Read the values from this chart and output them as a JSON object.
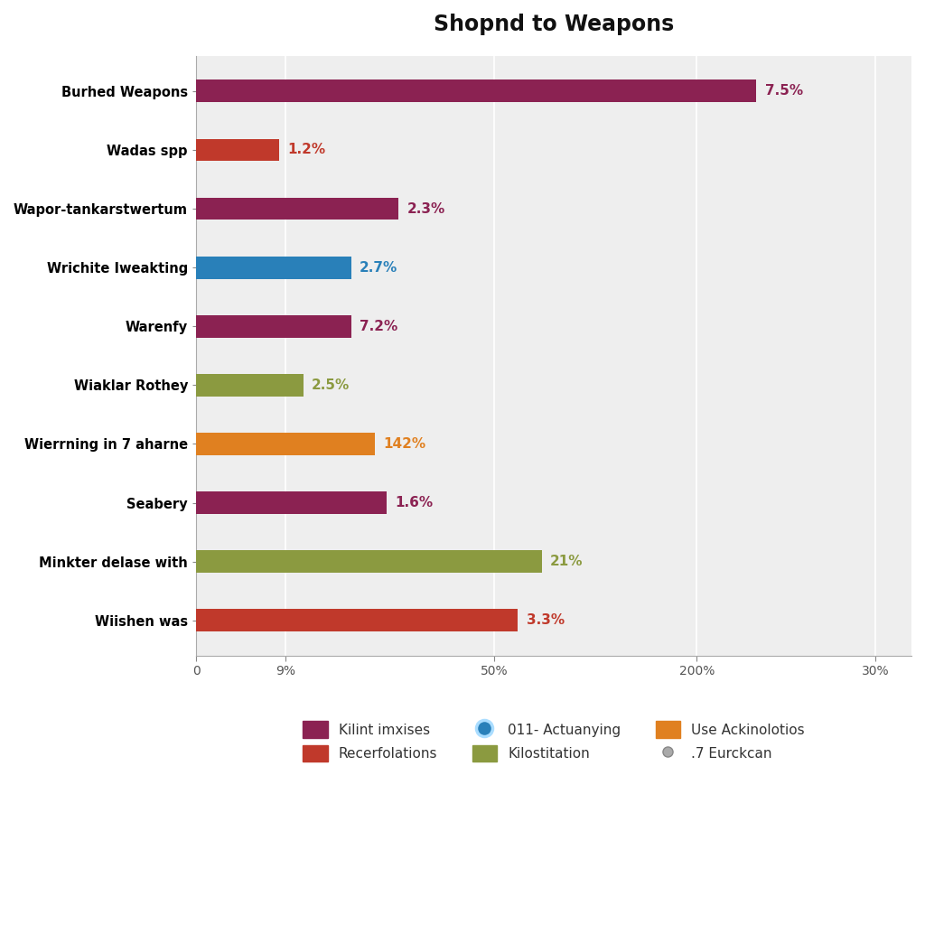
{
  "title": "Shopnd to Weapons",
  "categories": [
    "Wiishen was",
    "Minkter delase with",
    "Seabery",
    "Wierrning in 7 aharne",
    "Wiaklar Rothey",
    "Warenfy",
    "Wrichite Iweakting",
    "Wapor-tankarstwertum",
    "Wadas spp",
    "Burhed Weapons"
  ],
  "value_labels": [
    "3.3%",
    "21%",
    "1.6%",
    "142%",
    "2.5%",
    "7.2%",
    "2.7%",
    "2.3%",
    "1.2%",
    "7.5%"
  ],
  "colors": [
    "#c0392b",
    "#8b9a40",
    "#8b2252",
    "#e08020",
    "#8b9a40",
    "#8b2252",
    "#2980b9",
    "#8b2252",
    "#c0392b",
    "#8b2252"
  ],
  "label_colors": [
    "#c0392b",
    "#8b9a40",
    "#8b2252",
    "#e08020",
    "#8b9a40",
    "#8b2252",
    "#2980b9",
    "#8b2252",
    "#c0392b",
    "#8b2252"
  ],
  "display_values": [
    13.5,
    14.5,
    8.0,
    7.5,
    4.5,
    6.5,
    6.5,
    8.5,
    3.5,
    23.5
  ],
  "xlim": [
    0,
    30
  ],
  "xtick_labels": [
    "0",
    "9%",
    "50%",
    "200%",
    "30%"
  ],
  "xtick_positions": [
    0,
    3.75,
    12.5,
    21.0,
    28.5
  ],
  "plot_bg_color": "#eeeeee",
  "fig_bg_color": "#ffffff",
  "legend_items": [
    {
      "label": "Kilint imxises",
      "color": "#8b2252",
      "type": "patch"
    },
    {
      "label": "Recerfolations",
      "color": "#c0392b",
      "type": "patch"
    },
    {
      "label": "011- Actuanying",
      "color": "#2980b9",
      "type": "circle"
    },
    {
      "label": "Kilostitation",
      "color": "#8b9a40",
      "type": "patch"
    },
    {
      "label": "Use Ackinolotios",
      "color": "#e08020",
      "type": "patch"
    },
    {
      "label": ".7 Eurckcan",
      "color": "#aaaaaa",
      "type": "dot"
    }
  ]
}
